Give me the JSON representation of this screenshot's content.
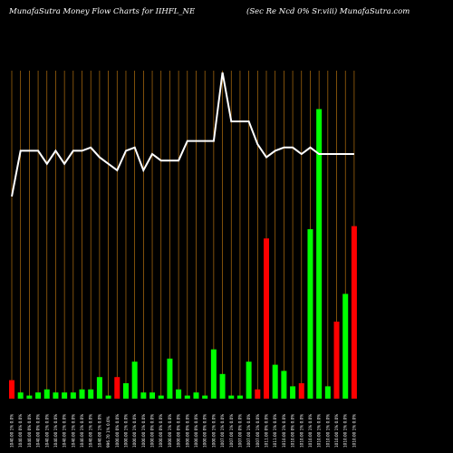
{
  "header": {
    "left": "MunafaSutra  Money Flow  Charts for IIHFL_NE",
    "right": "(Sec Re   Ncd 0% Sr.viii) MunafaSutra.com"
  },
  "colors": {
    "background": "#000000",
    "up": "#00ff00",
    "down": "#ff0000",
    "line": "#ffffff",
    "grid": "#b3700f"
  },
  "chart_data": {
    "type": "bar",
    "title": "MunafaSutra  Money Flow  Charts for IIHFL_NE",
    "grid": "vertical",
    "categories": [
      "1040.00 1% 0.0%",
      "1040.00 0% 0.0%",
      "1040.00 0% 0.0%",
      "1040.00 0% 0.0%",
      "1040.00 1% 0.0%",
      "1040.00 1% 0.0%",
      "1040.00 1% 0.0%",
      "1040.00 1% 0.0%",
      "1040.00 1% 0.0%",
      "1040.00 1% 0.0%",
      "1040.00 1% 0.0%",
      "996.70 1% 0.0%",
      "1000.00 0% 0.0%",
      "1000.00 1% 0.0%",
      "1000.00 1% 0.0%",
      "1000.00 1% 0.0%",
      "1000.00 0% 0.0%",
      "1000.00 0% 0.0%",
      "1000.00 1% 0.0%",
      "1000.00 0% 0.0%",
      "1000.00 0% 0.0%",
      "1000.00 0% 0.0%",
      "1000.00 0% 0.0%",
      "1000.00 1% 0.0%",
      "1007.00 1% 0.0%",
      "1007.00 1% 0.0%",
      "1007.00 0% 0.0%",
      "1007.00 1% 0.0%",
      "1007.00 1% 0.0%",
      "1011.00 0% 0.0%",
      "1011.00 1% 0.0%",
      "1010.00 1% 0.0%",
      "1010.00 0% 0.0%",
      "1010.00 1% 0.0%",
      "1010.00 1% 0.0%",
      "1010.00 1% 0.0%",
      "1010.00 1% 0.0%",
      "1010.00 1% 0.0%",
      "1010.00 1% 0.0%",
      "1010.00 1% 0.0%"
    ],
    "volume": [
      6,
      2,
      1,
      2,
      3,
      2,
      2,
      2,
      3,
      3,
      7,
      1,
      7,
      5,
      12,
      2,
      2,
      1,
      13,
      3,
      1,
      2,
      1,
      16,
      8,
      1,
      1,
      12,
      3,
      52,
      11,
      9,
      4,
      5,
      55,
      94,
      4,
      25,
      34,
      56
    ],
    "direction": [
      "down",
      "up",
      "up",
      "up",
      "up",
      "up",
      "up",
      "up",
      "up",
      "up",
      "up",
      "up",
      "down",
      "up",
      "up",
      "up",
      "up",
      "up",
      "up",
      "up",
      "up",
      "up",
      "up",
      "up",
      "up",
      "up",
      "up",
      "up",
      "down",
      "down",
      "up",
      "up",
      "up",
      "down",
      "up",
      "up",
      "up",
      "down",
      "up",
      "down"
    ],
    "price_line": [
      62,
      76,
      76,
      76,
      72,
      76,
      72,
      76,
      76,
      77,
      74,
      72,
      70,
      76,
      77,
      70,
      75,
      73,
      73,
      73,
      79,
      79,
      79,
      79,
      100,
      85,
      85,
      85,
      78,
      74,
      76,
      77,
      77,
      75,
      77,
      75,
      75,
      75,
      75,
      75
    ]
  }
}
